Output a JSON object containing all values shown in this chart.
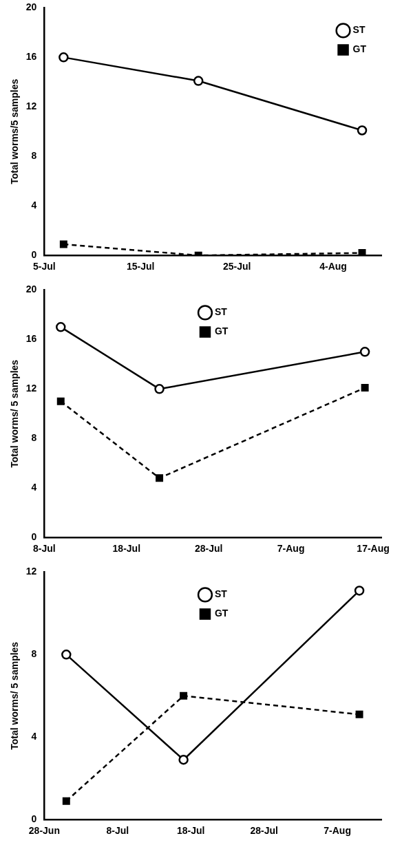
{
  "chart_data": [
    {
      "type": "line",
      "ylabel": "Total worms/5 samples",
      "x": [
        "--07-07",
        "--07-21",
        "--08-07"
      ],
      "xlim": [
        "--07-05",
        "--08-09"
      ],
      "xticks": [
        {
          "value": "--07-05",
          "label": "5-Jul"
        },
        {
          "value": "--07-15",
          "label": "15-Jul"
        },
        {
          "value": "--07-25",
          "label": "25-Jul"
        },
        {
          "value": "--08-04",
          "label": "4-Aug"
        }
      ],
      "ylim": [
        0,
        20
      ],
      "yticks": [
        0,
        4,
        8,
        12,
        16,
        20
      ],
      "grid": false,
      "legend": "top right",
      "series": [
        {
          "name": "ST",
          "color": "#000000",
          "values": [
            16,
            14.1,
            10.1
          ],
          "marker": "circle",
          "line_style": "solid"
        },
        {
          "name": "GT",
          "color": "#000000",
          "values": [
            0.9,
            0,
            0.2
          ],
          "marker": "square",
          "line_style": "dashed"
        }
      ]
    },
    {
      "type": "line",
      "ylabel": "Total worms/ 5 samples",
      "x": [
        "--07-10",
        "--07-22",
        "--08-16"
      ],
      "xlim": [
        "--07-08",
        "--08-18"
      ],
      "xticks": [
        {
          "value": "--07-08",
          "label": "8-Jul"
        },
        {
          "value": "--07-18",
          "label": "18-Jul"
        },
        {
          "value": "--07-28",
          "label": "28-Jul"
        },
        {
          "value": "--08-07",
          "label": "7-Aug"
        },
        {
          "value": "--08-17",
          "label": "17-Aug"
        }
      ],
      "ylim": [
        0,
        20
      ],
      "yticks": [
        0,
        4,
        8,
        12,
        16,
        20
      ],
      "grid": false,
      "legend": "top",
      "series": [
        {
          "name": "ST",
          "color": "#000000",
          "values": [
            17,
            12,
            15
          ],
          "marker": "circle",
          "line_style": "solid"
        },
        {
          "name": "GT",
          "color": "#000000",
          "values": [
            11,
            4.8,
            12.1
          ],
          "marker": "square",
          "line_style": "dashed"
        }
      ]
    },
    {
      "type": "line",
      "ylabel": "Total worms/ 5 samples",
      "x": [
        "--07-01",
        "--07-17",
        "--08-10"
      ],
      "xlim": [
        "--06-28",
        "--08-13"
      ],
      "xticks": [
        {
          "value": "--06-28",
          "label": "28-Jun"
        },
        {
          "value": "--07-08",
          "label": "8-Jul"
        },
        {
          "value": "--07-18",
          "label": "18-Jul"
        },
        {
          "value": "--07-28",
          "label": "28-Jul"
        },
        {
          "value": "--08-07",
          "label": "7-Aug"
        }
      ],
      "ylim": [
        0,
        12
      ],
      "yticks": [
        0,
        4,
        8,
        12
      ],
      "grid": false,
      "legend": "top",
      "series": [
        {
          "name": "ST",
          "color": "#000000",
          "values": [
            8,
            2.9,
            11.1
          ],
          "marker": "circle",
          "line_style": "solid"
        },
        {
          "name": "GT",
          "color": "#000000",
          "values": [
            0.9,
            6,
            5.1
          ],
          "marker": "square",
          "line_style": "dashed"
        }
      ]
    }
  ]
}
